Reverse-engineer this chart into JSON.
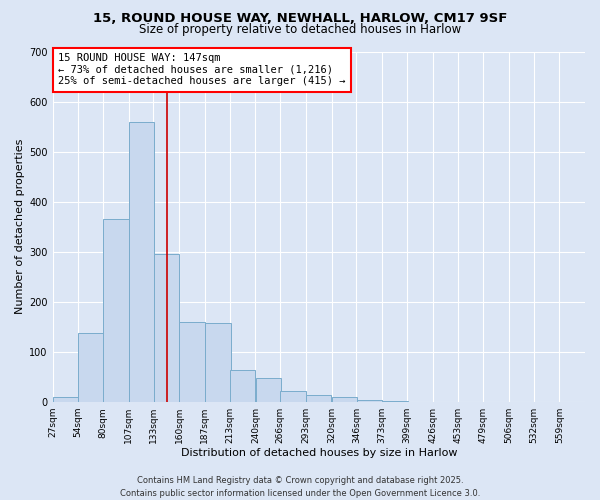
{
  "title_line1": "15, ROUND HOUSE WAY, NEWHALL, HARLOW, CM17 9SF",
  "title_line2": "Size of property relative to detached houses in Harlow",
  "xlabel": "Distribution of detached houses by size in Harlow",
  "ylabel": "Number of detached properties",
  "property_size": 147,
  "property_label": "15 ROUND HOUSE WAY: 147sqm",
  "annotation_line2": "← 73% of detached houses are smaller (1,216)",
  "annotation_line3": "25% of semi-detached houses are larger (415) →",
  "vline_color": "#cc0000",
  "bar_color": "#c8d8ee",
  "bar_edge_color": "#7aaccc",
  "background_color": "#dce6f5",
  "grid_color": "#ffffff",
  "bins_left_edges": [
    27,
    54,
    80,
    107,
    133,
    160,
    187,
    213,
    240,
    266,
    293,
    320,
    346,
    373,
    399,
    426,
    453,
    479,
    506,
    532
  ],
  "bin_width": 27,
  "bin_labels": [
    "27sqm",
    "54sqm",
    "80sqm",
    "107sqm",
    "133sqm",
    "160sqm",
    "187sqm",
    "213sqm",
    "240sqm",
    "266sqm",
    "293sqm",
    "320sqm",
    "346sqm",
    "373sqm",
    "399sqm",
    "426sqm",
    "453sqm",
    "479sqm",
    "506sqm",
    "532sqm",
    "559sqm"
  ],
  "counts": [
    10,
    138,
    365,
    560,
    295,
    160,
    158,
    65,
    48,
    22,
    14,
    10,
    5,
    2,
    1,
    1,
    0,
    0,
    0,
    0
  ],
  "ylim": [
    0,
    700
  ],
  "yticks": [
    0,
    100,
    200,
    300,
    400,
    500,
    600,
    700
  ],
  "footer_line1": "Contains HM Land Registry data © Crown copyright and database right 2025.",
  "footer_line2": "Contains public sector information licensed under the Open Government Licence 3.0.",
  "title_fontsize": 9.5,
  "subtitle_fontsize": 8.5,
  "axis_label_fontsize": 8,
  "tick_fontsize": 7,
  "annotation_fontsize": 7.5,
  "footer_fontsize": 6
}
